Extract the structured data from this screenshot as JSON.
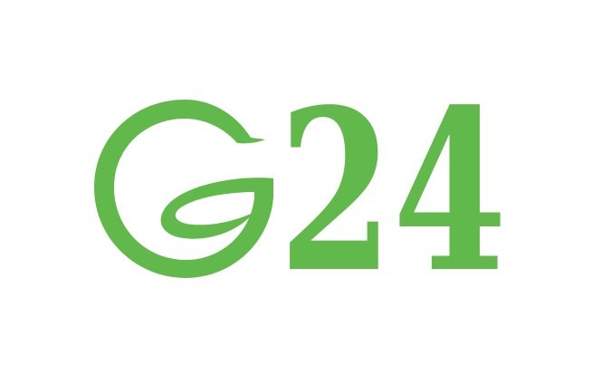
{
  "logo": {
    "mark_letter": "G",
    "text": "24",
    "brand_color": "#62B94B",
    "background_color": "#FFFFFF",
    "icon_name": "leaf-g-logo-icon"
  }
}
